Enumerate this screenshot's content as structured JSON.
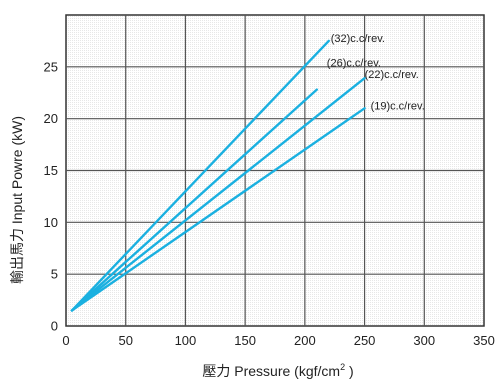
{
  "chart_data": {
    "type": "line",
    "xlabel": "壓力 Pressure (kgf/cm",
    "xlabel_sup": "2",
    "xlabel_tail": " )",
    "ylabel": "輸出馬力 Input Powre (kW)",
    "xlim": [
      0,
      350
    ],
    "ylim": [
      0,
      30
    ],
    "xticks": [
      0,
      50,
      100,
      150,
      200,
      250,
      300,
      350
    ],
    "yticks": [
      0,
      5,
      10,
      15,
      20,
      25
    ],
    "grid": true,
    "series_color": "#1ab0e0",
    "series": [
      {
        "name": "(32)c.c/rev.",
        "x": [
          5,
          220
        ],
        "y": [
          1.5,
          27.5
        ]
      },
      {
        "name": "(26)c.c/rev.",
        "x": [
          5,
          210
        ],
        "y": [
          1.5,
          22.8
        ]
      },
      {
        "name": "(22)c.c/rev.",
        "x": [
          5,
          250
        ],
        "y": [
          1.5,
          23.9
        ]
      },
      {
        "name": "(19)c.c/rev.",
        "x": [
          5,
          250
        ],
        "y": [
          1.5,
          21.0
        ]
      }
    ]
  }
}
